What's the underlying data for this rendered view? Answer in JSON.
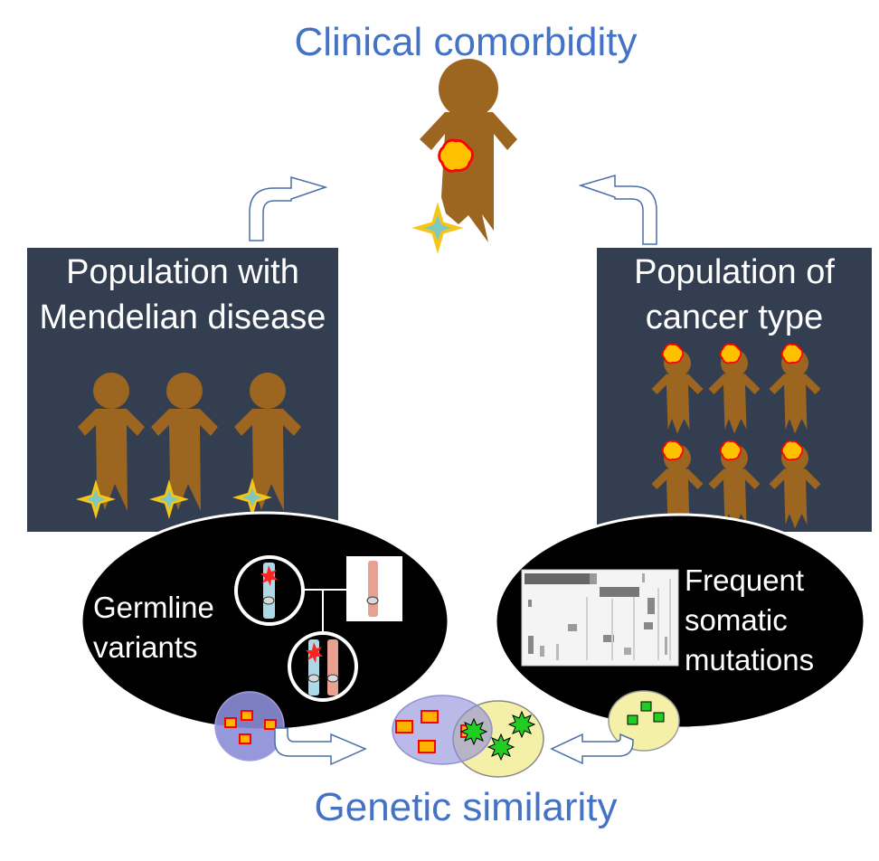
{
  "title_top": "Clinical comorbidity",
  "title_bottom": "Genetic similarity",
  "left_panel": {
    "line1": "Population with",
    "line2": "Mendelian disease"
  },
  "right_panel": {
    "line1": "Population of",
    "line2": "cancer type"
  },
  "left_oval": {
    "line1": "Germline",
    "line2": "variants"
  },
  "right_oval": {
    "line1": "Frequent",
    "line2": "somatic",
    "line3": "mutations"
  },
  "colors": {
    "title": "#4472c4",
    "panel_bg": "#333f50",
    "person": "#9c6520",
    "oval_bg": "#000000",
    "blue_circle": "#8c8cd8",
    "yellow_circle": "#f5f0a8",
    "star_gold": "#f5c518",
    "star_teal": "#7ec8c0",
    "red_square": "#ffb300",
    "green_star": "#22cc22"
  }
}
